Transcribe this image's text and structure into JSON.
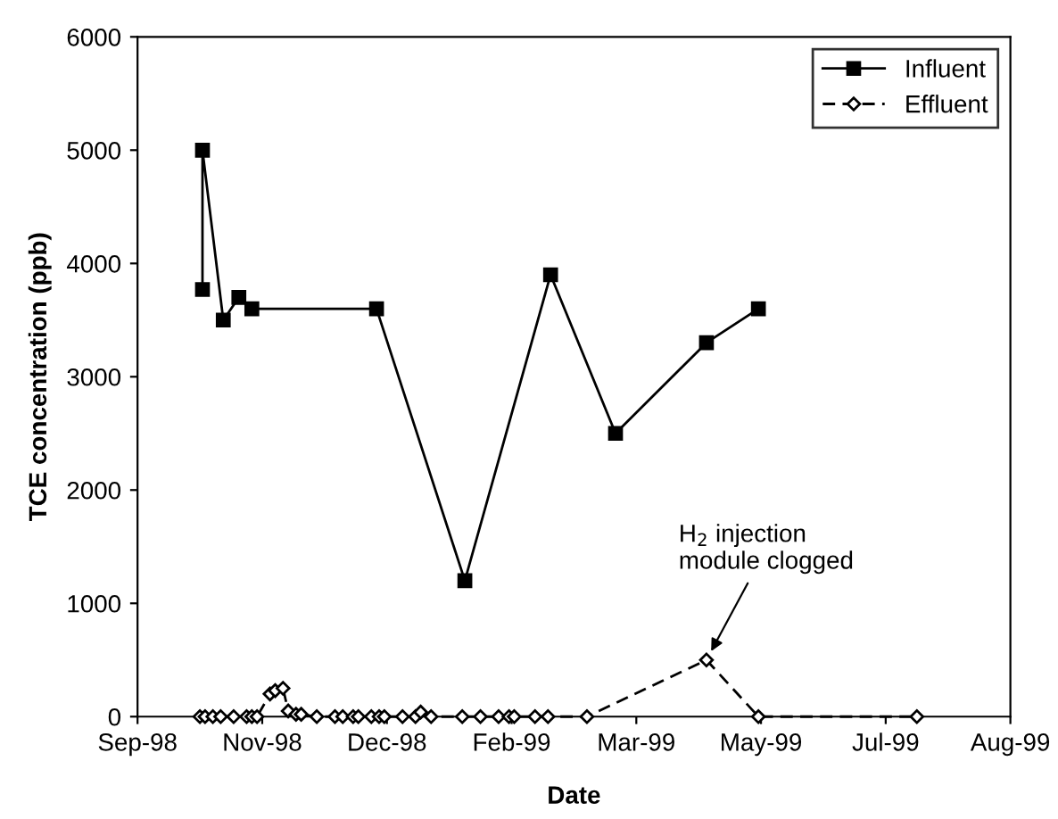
{
  "chart_data": {
    "type": "line",
    "xlabel": "Date",
    "ylabel": "TCE concentration (ppb)",
    "xlim": [
      "1998-09-20",
      "1999-08-22"
    ],
    "xticks": [
      {
        "value": "1998-09-20",
        "label": "Sep-98"
      },
      {
        "value": "1998-11-07",
        "label": "Nov-98"
      },
      {
        "value": "1998-12-25",
        "label": "Dec-98"
      },
      {
        "value": "1999-02-11",
        "label": "Feb-99"
      },
      {
        "value": "1999-03-31",
        "label": "Mar-99"
      },
      {
        "value": "1999-05-18",
        "label": "May-99"
      },
      {
        "value": "1999-07-05",
        "label": "Jul-99"
      },
      {
        "value": "1999-08-22",
        "label": "Aug-99"
      }
    ],
    "ylim": [
      0,
      6000
    ],
    "yticks": [
      0,
      1000,
      2000,
      3000,
      4000,
      5000,
      6000
    ],
    "grid": false,
    "legend": "top right",
    "series": [
      {
        "name": "Influent",
        "color": "#000000",
        "marker": "square",
        "line_style": "solid",
        "x": [
          "1998-10-15",
          "1998-10-15",
          "1998-10-23",
          "1998-10-29",
          "1998-11-03",
          "1998-12-21",
          "1999-01-24",
          "1999-02-26",
          "1999-03-23",
          "1999-04-27",
          "1999-05-17"
        ],
        "values": [
          3770,
          5000,
          3500,
          3700,
          3600,
          3600,
          1200,
          3900,
          2500,
          3300,
          3600
        ]
      },
      {
        "name": "Effluent",
        "color": "#000000",
        "marker": "diamond",
        "line_style": "dashed",
        "x": [
          "1998-10-14",
          "1998-10-16",
          "1998-10-19",
          "1998-10-22",
          "1998-10-27",
          "1998-11-01",
          "1998-11-03",
          "1998-11-05",
          "1998-11-10",
          "1998-11-12",
          "1998-11-15",
          "1998-11-17",
          "1998-11-20",
          "1998-11-22",
          "1998-11-28",
          "1998-12-05",
          "1998-12-08",
          "1998-12-12",
          "1998-12-14",
          "1998-12-19",
          "1998-12-22",
          "1998-12-24",
          "1998-12-31",
          "1999-01-05",
          "1999-01-07",
          "1999-01-11",
          "1999-01-23",
          "1999-01-30",
          "1999-02-06",
          "1999-02-10",
          "1999-02-12",
          "1999-02-20",
          "1999-02-25",
          "1999-03-12",
          "1999-04-27",
          "1999-05-17",
          "1999-07-17"
        ],
        "values": [
          0,
          0,
          0,
          0,
          0,
          0,
          0,
          0,
          200,
          230,
          250,
          50,
          20,
          20,
          0,
          0,
          0,
          0,
          0,
          0,
          0,
          0,
          0,
          0,
          40,
          0,
          0,
          0,
          0,
          0,
          0,
          0,
          0,
          0,
          500,
          0,
          0
        ]
      }
    ],
    "annotations": [
      {
        "text": "H$_{2}$ injection\nmodule clogged",
        "x": "1999-04-27",
        "y": 500
      }
    ]
  }
}
